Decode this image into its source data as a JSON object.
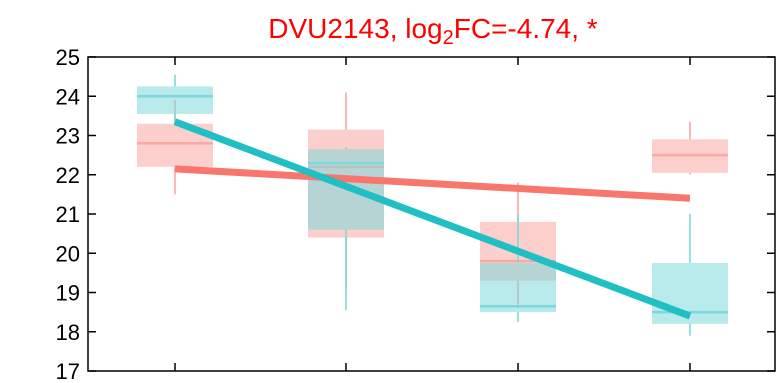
{
  "chart_data": {
    "type": "box",
    "title": {
      "prefix": "DVU2143, log",
      "subscript": "2",
      "suffix": "FC=-4.74, *"
    },
    "xlabel": "",
    "ylabel": "",
    "ylim": [
      17,
      25
    ],
    "yticks": [
      "17",
      "18",
      "19",
      "20",
      "21",
      "22",
      "23",
      "24",
      "25"
    ],
    "xtick_count": 4,
    "grid": false,
    "legend": "none",
    "series": [
      {
        "color": "#f8766d",
        "box_color": "#f9a8a3",
        "boxes": [
          {
            "q1": 22.2,
            "median": 22.8,
            "q3": 23.3,
            "whisker_low": 21.5,
            "whisker_high": 23.9
          },
          {
            "q1": 20.4,
            "median": 22.2,
            "q3": 23.15,
            "whisker_low": 19.1,
            "whisker_high": 24.1
          },
          {
            "q1": 19.3,
            "median": 19.8,
            "q3": 20.8,
            "whisker_low": 18.6,
            "whisker_high": 21.8
          },
          {
            "q1": 22.05,
            "median": 22.5,
            "q3": 22.9,
            "whisker_low": 22.0,
            "whisker_high": 23.35
          }
        ],
        "trend": [
          22.15,
          21.4
        ]
      },
      {
        "color": "#1fbfc4",
        "box_color": "#7dd8db",
        "boxes": [
          {
            "q1": 23.55,
            "median": 24.0,
            "q3": 24.25,
            "whisker_low": 23.3,
            "whisker_high": 24.55
          },
          {
            "q1": 20.6,
            "median": 22.3,
            "q3": 22.65,
            "whisker_low": 18.55,
            "whisker_high": 22.7
          },
          {
            "q1": 18.5,
            "median": 18.65,
            "q3": 19.75,
            "whisker_low": 18.25,
            "whisker_high": 21.0
          },
          {
            "q1": 18.2,
            "median": 18.5,
            "q3": 19.75,
            "whisker_low": 17.9,
            "whisker_high": 21.0
          }
        ],
        "trend": [
          23.35,
          18.4
        ]
      }
    ]
  }
}
